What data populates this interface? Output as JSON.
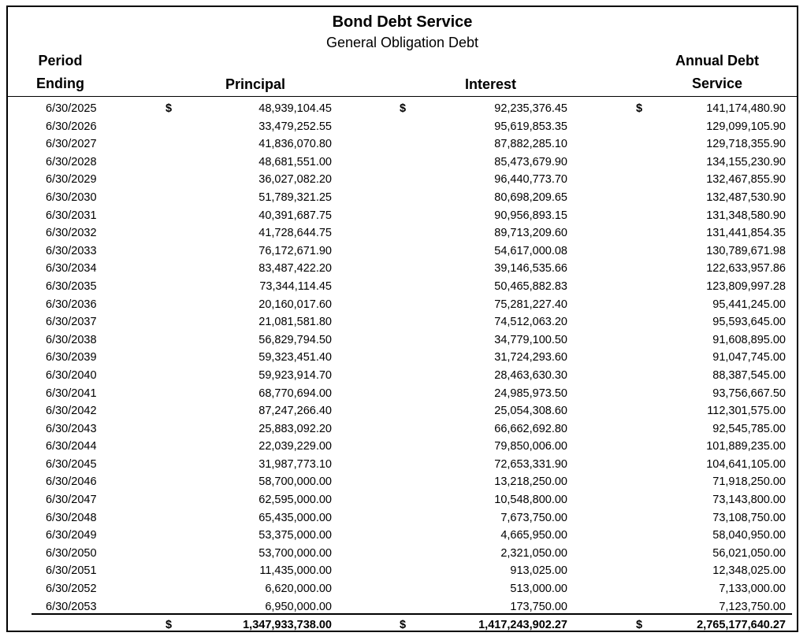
{
  "title": "Bond Debt Service",
  "subtitle": "General Obligation Debt",
  "columns": {
    "period_line1": "Period",
    "period_line2": "Ending",
    "principal": "Principal",
    "interest": "Interest",
    "annual_line1": "Annual Debt",
    "annual_line2": "Service"
  },
  "currency_symbol": "$",
  "rows": [
    {
      "date": "6/30/2025",
      "principal": "48,939,104.45",
      "interest": "92,235,376.45",
      "annual": "141,174,480.90",
      "show_dollar": true
    },
    {
      "date": "6/30/2026",
      "principal": "33,479,252.55",
      "interest": "95,619,853.35",
      "annual": "129,099,105.90"
    },
    {
      "date": "6/30/2027",
      "principal": "41,836,070.80",
      "interest": "87,882,285.10",
      "annual": "129,718,355.90"
    },
    {
      "date": "6/30/2028",
      "principal": "48,681,551.00",
      "interest": "85,473,679.90",
      "annual": "134,155,230.90"
    },
    {
      "date": "6/30/2029",
      "principal": "36,027,082.20",
      "interest": "96,440,773.70",
      "annual": "132,467,855.90"
    },
    {
      "date": "6/30/2030",
      "principal": "51,789,321.25",
      "interest": "80,698,209.65",
      "annual": "132,487,530.90"
    },
    {
      "date": "6/30/2031",
      "principal": "40,391,687.75",
      "interest": "90,956,893.15",
      "annual": "131,348,580.90"
    },
    {
      "date": "6/30/2032",
      "principal": "41,728,644.75",
      "interest": "89,713,209.60",
      "annual": "131,441,854.35"
    },
    {
      "date": "6/30/2033",
      "principal": "76,172,671.90",
      "interest": "54,617,000.08",
      "annual": "130,789,671.98"
    },
    {
      "date": "6/30/2034",
      "principal": "83,487,422.20",
      "interest": "39,146,535.66",
      "annual": "122,633,957.86"
    },
    {
      "date": "6/30/2035",
      "principal": "73,344,114.45",
      "interest": "50,465,882.83",
      "annual": "123,809,997.28"
    },
    {
      "date": "6/30/2036",
      "principal": "20,160,017.60",
      "interest": "75,281,227.40",
      "annual": "95,441,245.00"
    },
    {
      "date": "6/30/2037",
      "principal": "21,081,581.80",
      "interest": "74,512,063.20",
      "annual": "95,593,645.00"
    },
    {
      "date": "6/30/2038",
      "principal": "56,829,794.50",
      "interest": "34,779,100.50",
      "annual": "91,608,895.00"
    },
    {
      "date": "6/30/2039",
      "principal": "59,323,451.40",
      "interest": "31,724,293.60",
      "annual": "91,047,745.00"
    },
    {
      "date": "6/30/2040",
      "principal": "59,923,914.70",
      "interest": "28,463,630.30",
      "annual": "88,387,545.00"
    },
    {
      "date": "6/30/2041",
      "principal": "68,770,694.00",
      "interest": "24,985,973.50",
      "annual": "93,756,667.50"
    },
    {
      "date": "6/30/2042",
      "principal": "87,247,266.40",
      "interest": "25,054,308.60",
      "annual": "112,301,575.00"
    },
    {
      "date": "6/30/2043",
      "principal": "25,883,092.20",
      "interest": "66,662,692.80",
      "annual": "92,545,785.00"
    },
    {
      "date": "6/30/2044",
      "principal": "22,039,229.00",
      "interest": "79,850,006.00",
      "annual": "101,889,235.00"
    },
    {
      "date": "6/30/2045",
      "principal": "31,987,773.10",
      "interest": "72,653,331.90",
      "annual": "104,641,105.00"
    },
    {
      "date": "6/30/2046",
      "principal": "58,700,000.00",
      "interest": "13,218,250.00",
      "annual": "71,918,250.00"
    },
    {
      "date": "6/30/2047",
      "principal": "62,595,000.00",
      "interest": "10,548,800.00",
      "annual": "73,143,800.00"
    },
    {
      "date": "6/30/2048",
      "principal": "65,435,000.00",
      "interest": "7,673,750.00",
      "annual": "73,108,750.00"
    },
    {
      "date": "6/30/2049",
      "principal": "53,375,000.00",
      "interest": "4,665,950.00",
      "annual": "58,040,950.00"
    },
    {
      "date": "6/30/2050",
      "principal": "53,700,000.00",
      "interest": "2,321,050.00",
      "annual": "56,021,050.00"
    },
    {
      "date": "6/30/2051",
      "principal": "11,435,000.00",
      "interest": "913,025.00",
      "annual": "12,348,025.00"
    },
    {
      "date": "6/30/2052",
      "principal": "6,620,000.00",
      "interest": "513,000.00",
      "annual": "7,133,000.00"
    },
    {
      "date": "6/30/2053",
      "principal": "6,950,000.00",
      "interest": "173,750.00",
      "annual": "7,123,750.00"
    }
  ],
  "totals": {
    "principal": "1,347,933,738.00",
    "interest": "1,417,243,902.27",
    "annual": "2,765,177,640.27"
  }
}
